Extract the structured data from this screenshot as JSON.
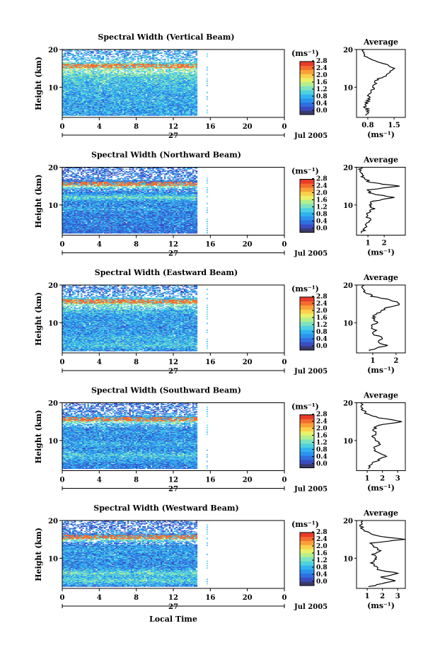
{
  "colors": {
    "colorbar": [
      "#3a3a6e",
      "#3b4cc0",
      "#2f6fe0",
      "#2b93ee",
      "#30b4f0",
      "#4fd2e0",
      "#7fe3c0",
      "#b4ef8e",
      "#e9f06a",
      "#fbd04a",
      "#f9a037",
      "#f46c2e",
      "#e83a2a"
    ],
    "axis": "#000000",
    "gap_marks": "#4fd2e0"
  },
  "shared": {
    "time_axis_label": "Local Time",
    "time_ticks": [
      "0",
      "4",
      "8",
      "12",
      "16",
      "20",
      "0"
    ],
    "date_day": "27",
    "date_month_year": "Jul 2005",
    "height_label": "Height (km)",
    "height_ticks": [
      "10",
      "20"
    ],
    "unit_label": "(ms⁻¹)",
    "colorbar_ticks": [
      "0.0",
      "0.4",
      "0.8",
      "1.2",
      "1.6",
      "2.0",
      "2.4",
      "2.8"
    ],
    "average_title": "Average",
    "average_unit": "(ms⁻¹)"
  },
  "chart_data": [
    {
      "type": "heatmap",
      "title": "Spectral Width (Vertical Beam)",
      "xlabel": "",
      "ylabel": "Height (km)",
      "xlim": [
        0,
        24
      ],
      "ylim": [
        2,
        20
      ],
      "data_coverage_hours": [
        0,
        14.5
      ],
      "colorbar": {
        "label": "(ms⁻¹)",
        "range": [
          0,
          3.0
        ],
        "ticks": [
          0.0,
          0.4,
          0.8,
          1.2,
          1.6,
          2.0,
          2.4,
          2.8
        ]
      },
      "average_profile": {
        "title": "Average",
        "xlabel": "(ms⁻¹)",
        "xticks": [
          "0.8",
          "1.5"
        ],
        "xlim": [
          0.5,
          1.8
        ],
        "height_km": [
          2.5,
          4,
          5,
          6,
          7,
          8,
          9,
          10,
          11,
          12,
          13,
          14,
          15,
          16,
          17,
          18,
          19,
          20
        ],
        "width_ms": [
          0.75,
          0.8,
          0.72,
          0.78,
          0.85,
          0.8,
          0.9,
          0.95,
          1.0,
          1.05,
          1.25,
          1.35,
          1.5,
          1.3,
          1.0,
          0.75,
          0.65,
          0.7
        ]
      }
    },
    {
      "type": "heatmap",
      "title": "Spectral Width (Northward Beam)",
      "xlabel": "",
      "ylabel": "Height (km)",
      "xlim": [
        0,
        24
      ],
      "ylim": [
        2,
        20
      ],
      "data_coverage_hours": [
        0,
        14.5
      ],
      "colorbar": {
        "label": "(ms⁻¹)",
        "range": [
          0,
          3.0
        ],
        "ticks": [
          0.0,
          0.4,
          0.8,
          1.2,
          1.6,
          2.0,
          2.4,
          2.8
        ]
      },
      "average_profile": {
        "title": "Average",
        "xlabel": "(ms⁻¹)",
        "xticks": [
          "1",
          "2"
        ],
        "xlim": [
          0.3,
          3.3
        ],
        "height_km": [
          2.5,
          4,
          5,
          6,
          7,
          8,
          9,
          10,
          11,
          12,
          13,
          14,
          15,
          16,
          17,
          18,
          19,
          20
        ],
        "width_ms": [
          0.6,
          0.9,
          0.8,
          1.2,
          0.9,
          1.0,
          1.4,
          1.1,
          1.3,
          2.6,
          1.2,
          1.0,
          2.9,
          1.1,
          0.8,
          0.6,
          0.5,
          0.6
        ]
      }
    },
    {
      "type": "heatmap",
      "title": "Spectral Width (Eastward Beam)",
      "xlabel": "",
      "ylabel": "Height (km)",
      "xlim": [
        0,
        24
      ],
      "ylim": [
        2,
        20
      ],
      "data_coverage_hours": [
        0,
        14.5
      ],
      "colorbar": {
        "label": "(ms⁻¹)",
        "range": [
          0,
          3.0
        ],
        "ticks": [
          0.0,
          0.4,
          0.8,
          1.2,
          1.6,
          2.0,
          2.4,
          2.8
        ]
      },
      "average_profile": {
        "title": "Average",
        "xlabel": "(ms⁻¹)",
        "xticks": [
          "1",
          "2"
        ],
        "xlim": [
          0.3,
          2.4
        ],
        "height_km": [
          2.5,
          4,
          5,
          6,
          7,
          8,
          9,
          10,
          11,
          12,
          13,
          14,
          15,
          16,
          17,
          18,
          19,
          20
        ],
        "width_ms": [
          0.8,
          1.6,
          1.2,
          1.4,
          1.0,
          1.1,
          0.9,
          1.2,
          1.0,
          1.1,
          1.3,
          1.6,
          2.2,
          1.8,
          1.0,
          0.7,
          0.6,
          0.6
        ]
      }
    },
    {
      "type": "heatmap",
      "title": "Spectral Width (Southward Beam)",
      "xlabel": "",
      "ylabel": "Height (km)",
      "xlim": [
        0,
        24
      ],
      "ylim": [
        2,
        20
      ],
      "data_coverage_hours": [
        0,
        14.5
      ],
      "colorbar": {
        "label": "(ms⁻¹)",
        "range": [
          0,
          3.0
        ],
        "ticks": [
          0.0,
          0.4,
          0.8,
          1.2,
          1.6,
          2.0,
          2.4,
          2.8
        ]
      },
      "average_profile": {
        "title": "Average",
        "xlabel": "(ms⁻¹)",
        "xticks": [
          "1",
          "2",
          "3"
        ],
        "xlim": [
          0.3,
          3.5
        ],
        "height_km": [
          2.5,
          4,
          5,
          6,
          7,
          8,
          9,
          10,
          11,
          12,
          13,
          14,
          15,
          16,
          17,
          18,
          19,
          20
        ],
        "width_ms": [
          1.0,
          1.4,
          1.8,
          2.3,
          1.6,
          1.4,
          1.9,
          1.5,
          1.3,
          1.6,
          1.4,
          1.7,
          3.3,
          1.8,
          1.0,
          0.7,
          0.6,
          0.6
        ]
      }
    },
    {
      "type": "heatmap",
      "title": "Spectral Width (Westward Beam)",
      "xlabel": "",
      "ylabel": "Height (km)",
      "xlim": [
        0,
        24
      ],
      "ylim": [
        2,
        20
      ],
      "data_coverage_hours": [
        0,
        14.5
      ],
      "colorbar": {
        "label": "(ms⁻¹)",
        "range": [
          0,
          3.0
        ],
        "ticks": [
          0.0,
          0.4,
          0.8,
          1.2,
          1.6,
          2.0,
          2.4,
          2.8
        ]
      },
      "average_profile": {
        "title": "Average",
        "xlabel": "(ms⁻¹)",
        "xticks": [
          "1",
          "2",
          "3"
        ],
        "xlim": [
          0.3,
          3.5
        ],
        "height_km": [
          2.5,
          4,
          5,
          6,
          7,
          8,
          9,
          10,
          11,
          12,
          13,
          14,
          15,
          16,
          17,
          18,
          19,
          20
        ],
        "width_ms": [
          1.2,
          2.8,
          2.0,
          3.0,
          1.7,
          1.5,
          1.3,
          1.6,
          1.4,
          1.8,
          1.5,
          1.2,
          3.4,
          1.6,
          1.0,
          0.7,
          0.6,
          0.6
        ]
      }
    }
  ]
}
